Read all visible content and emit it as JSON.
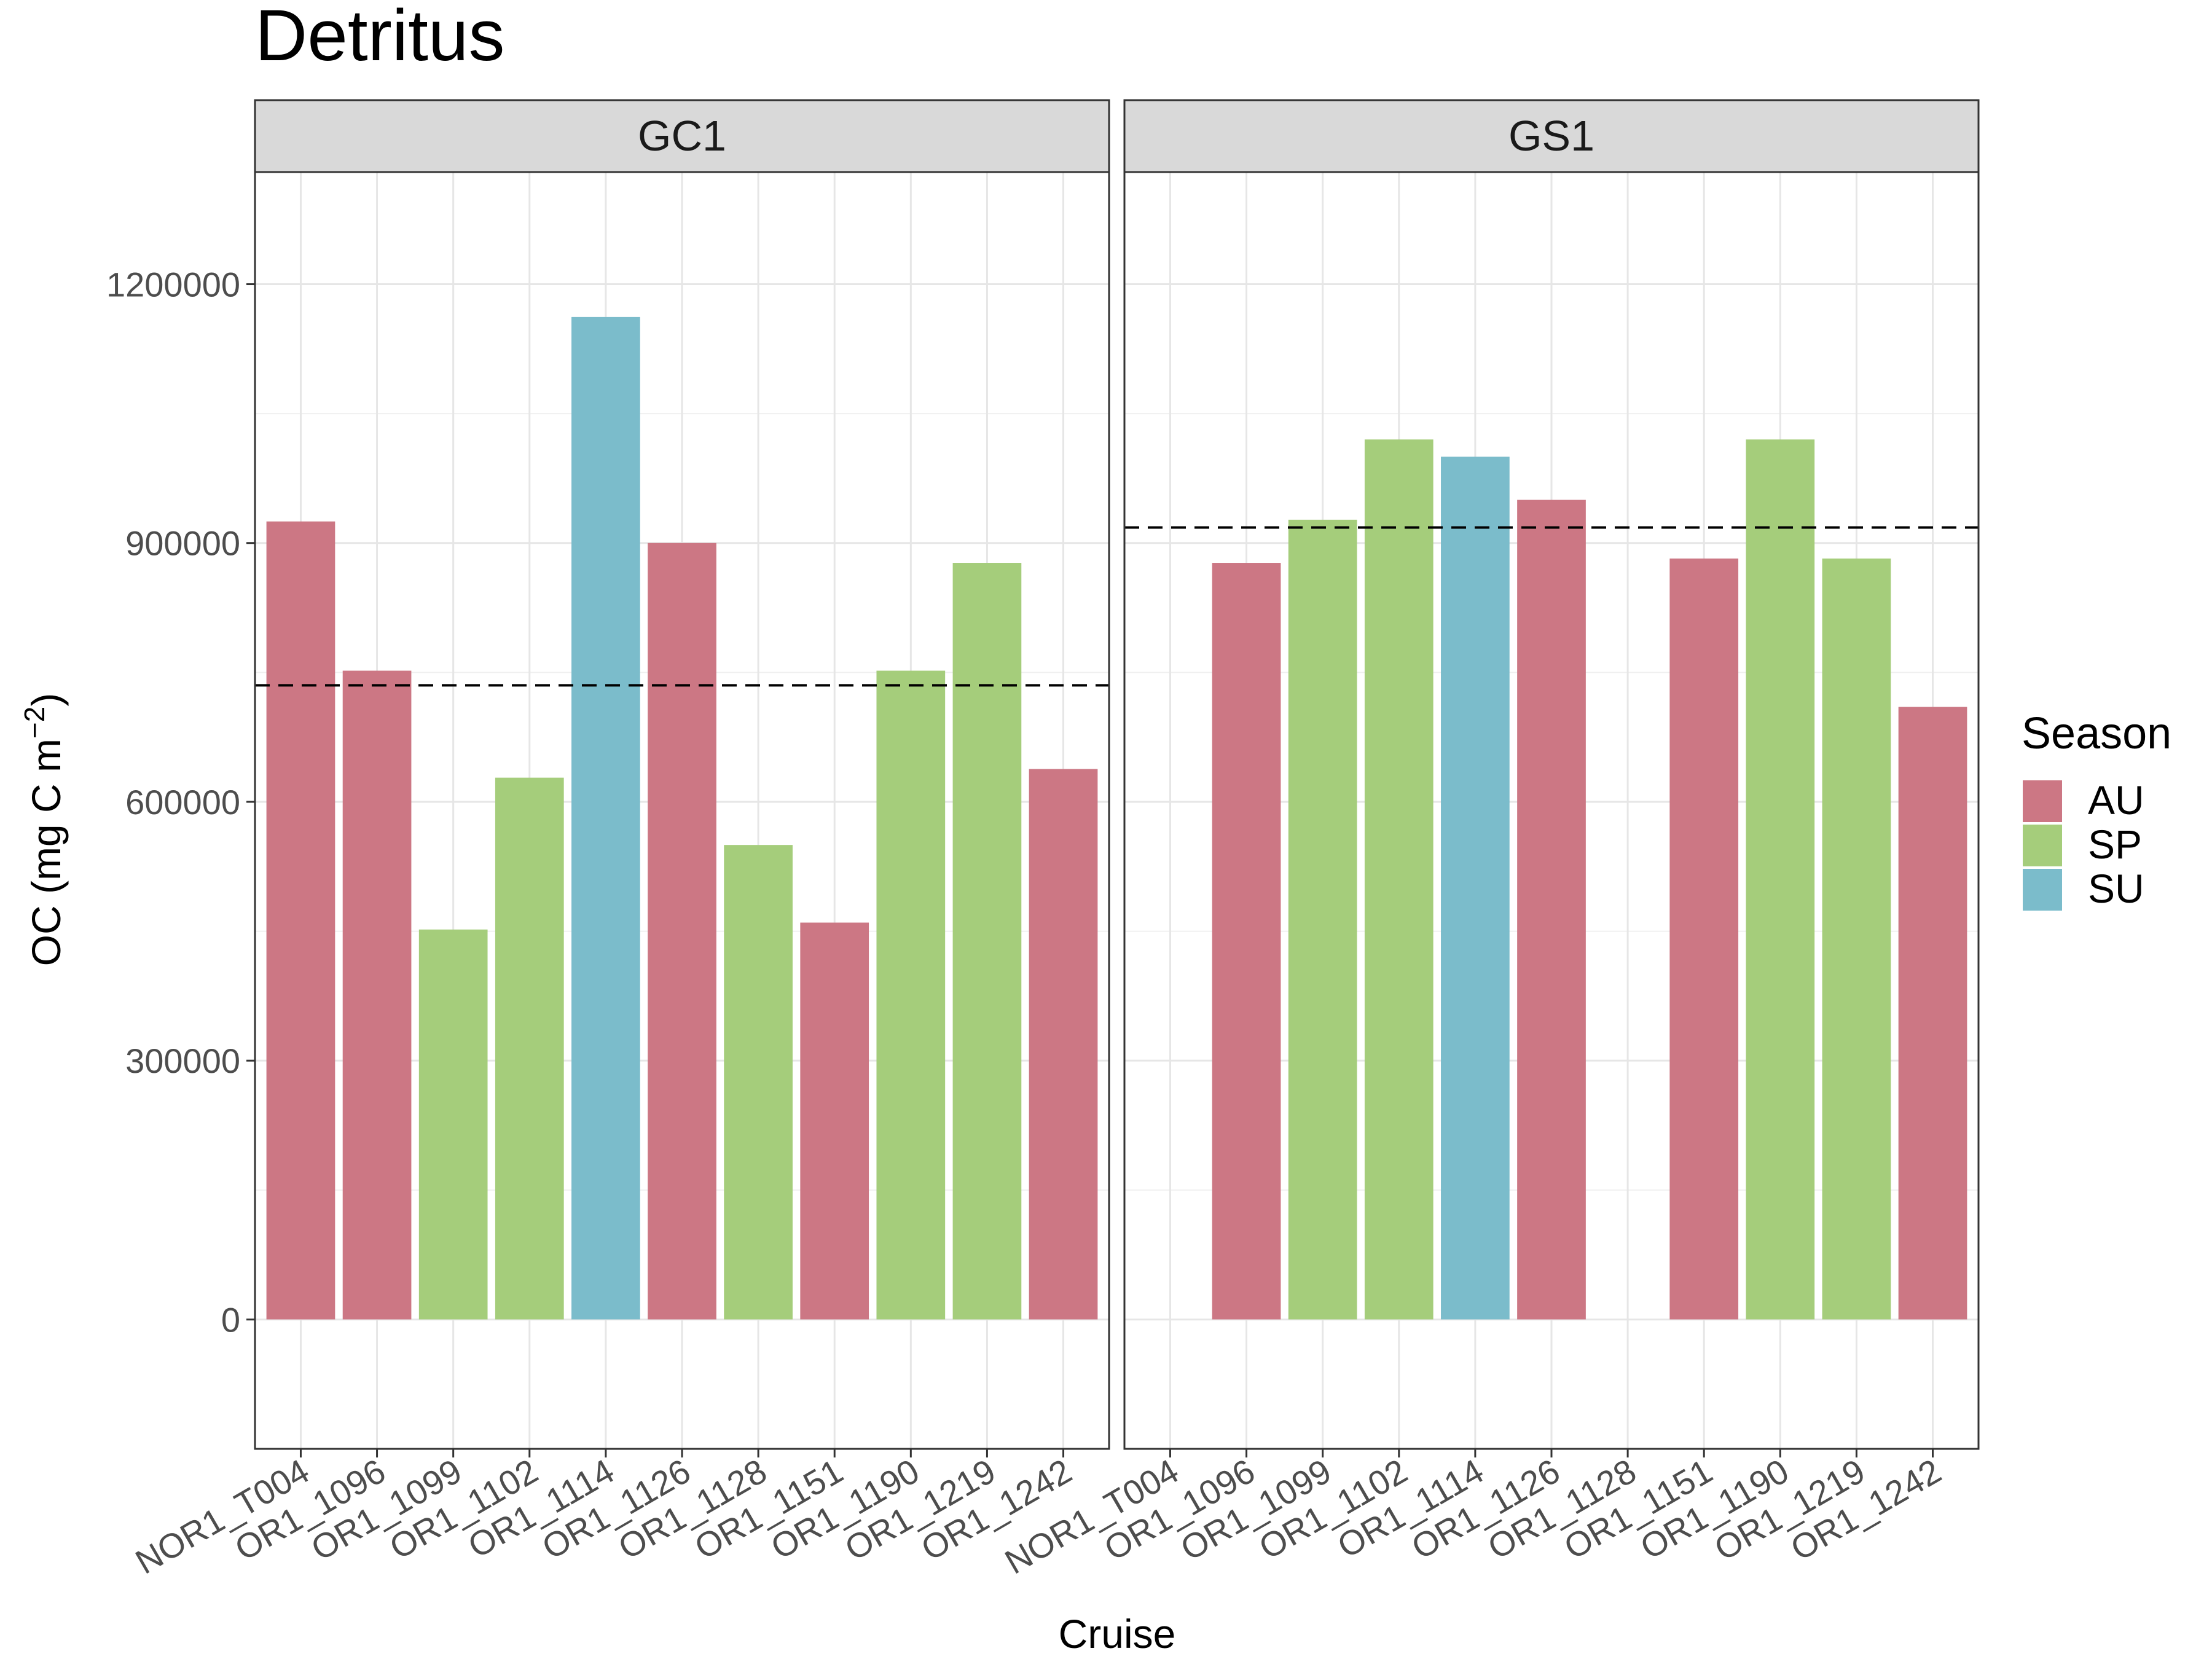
{
  "chart_data": {
    "type": "bar",
    "title": "Detritus",
    "xlabel": "Cruise",
    "ylabel": "OC (mg C m",
    "ylabel_sup": "−2",
    "ylabel_close": ")",
    "ylim": [
      -130000,
      1200000
    ],
    "yticks": [
      0,
      300000,
      600000,
      900000,
      1200000
    ],
    "ytick_labels": [
      "0",
      "300000",
      "600000",
      "900000",
      "1200000"
    ],
    "grid": true,
    "legend_position": "right",
    "legend_title": "Season",
    "seasons": [
      {
        "key": "AU",
        "color": "#CC7784"
      },
      {
        "key": "SP",
        "color": "#A5CD7B"
      },
      {
        "key": "SU",
        "color": "#7BBCCB"
      }
    ],
    "categories": [
      "NOR1_T004",
      "OR1_1096",
      "OR1_1099",
      "OR1_1102",
      "OR1_1114",
      "OR1_1126",
      "OR1_1128",
      "OR1_1151",
      "OR1_1190",
      "OR1_1219",
      "OR1_1242"
    ],
    "panels": [
      {
        "name": "GC1",
        "mean_line": 735000,
        "values": [
          925000,
          752000,
          452000,
          628000,
          1162000,
          900000,
          550000,
          460000,
          752000,
          877000,
          638000
        ],
        "seasons": [
          "AU",
          "AU",
          "SP",
          "SP",
          "SU",
          "AU",
          "SP",
          "AU",
          "SP",
          "SP",
          "AU"
        ]
      },
      {
        "name": "GS1",
        "mean_line": 918000,
        "values": [
          null,
          877000,
          927000,
          1020000,
          1000000,
          950000,
          null,
          882000,
          1020000,
          882000,
          710000
        ],
        "seasons": [
          null,
          "AU",
          "SP",
          "SP",
          "SU",
          "AU",
          null,
          "AU",
          "SP",
          "SP",
          "AU"
        ]
      }
    ]
  }
}
